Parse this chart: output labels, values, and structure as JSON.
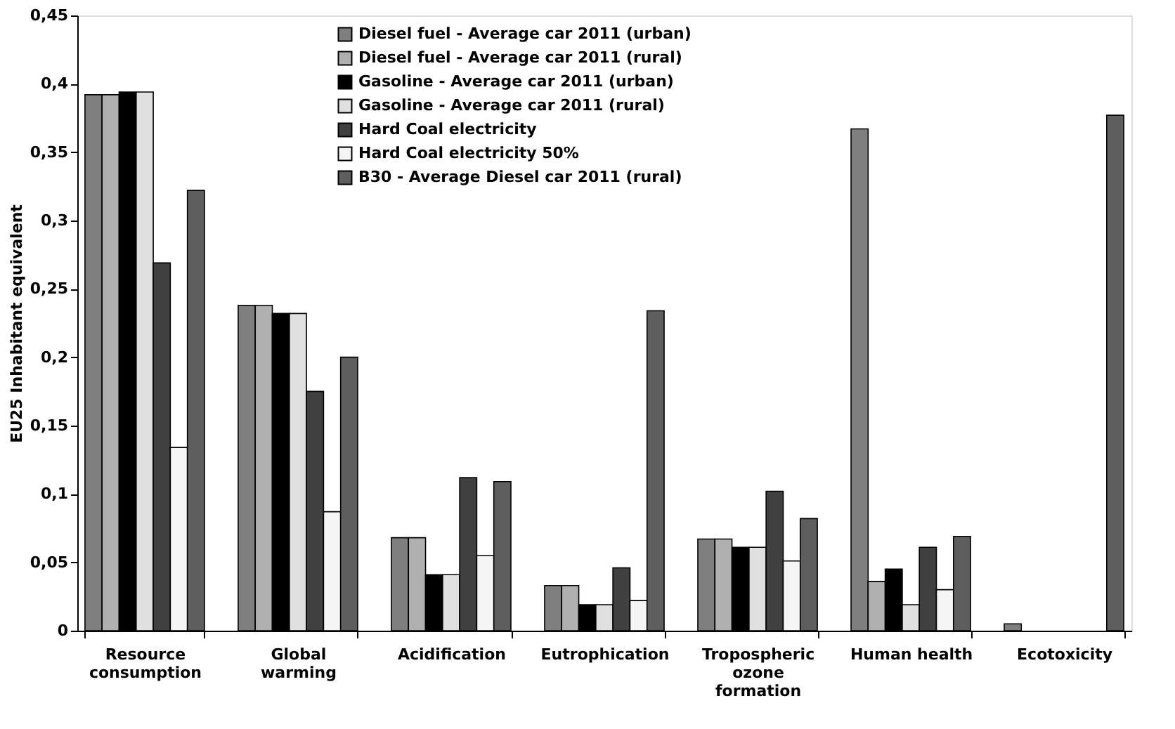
{
  "chart_data": {
    "type": "bar",
    "ylabel": "EU25 Inhabitant equivalent",
    "categories": [
      "Resource consumption",
      "Global warming",
      "Acidification",
      "Eutrophication",
      "Tropospheric ozone formation",
      "Human health",
      "Ecotoxicity"
    ],
    "series": [
      {
        "name": "Diesel fuel - Average car 2011 (urban)",
        "color": "#7f7f7f",
        "values": [
          0.392,
          0.238,
          0.068,
          0.033,
          0.067,
          0.367,
          0.005
        ]
      },
      {
        "name": "Diesel fuel - Average car 2011 (rural)",
        "color": "#b0b0b0",
        "values": [
          0.392,
          0.238,
          0.068,
          0.033,
          0.067,
          0.036,
          null
        ]
      },
      {
        "name": "Gasoline - Average car 2011 (urban)",
        "color": "#000000",
        "values": [
          0.394,
          0.232,
          0.041,
          0.019,
          0.061,
          0.045,
          null
        ]
      },
      {
        "name": "Gasoline - Average car 2011 (rural)",
        "color": "#e0e0e0",
        "values": [
          0.394,
          0.232,
          0.041,
          0.019,
          0.061,
          0.019,
          null
        ]
      },
      {
        "name": "Hard Coal electricity",
        "color": "#404040",
        "values": [
          0.269,
          0.175,
          0.112,
          0.046,
          0.102,
          0.061,
          null
        ]
      },
      {
        "name": "Hard Coal electricity 50%",
        "color": "#f5f5f5",
        "values": [
          0.134,
          0.087,
          0.055,
          0.022,
          0.051,
          0.03,
          null
        ]
      },
      {
        "name": "B30 - Average Diesel car 2011 (rural)",
        "color": "#5e5e5e",
        "values": [
          0.322,
          0.2,
          0.109,
          0.234,
          0.082,
          0.069,
          0.377
        ]
      }
    ],
    "ylim": [
      0,
      0.45
    ],
    "yticks": [
      0,
      {
        "value": 0.05,
        "label": "0,05"
      },
      {
        "value": 0.1,
        "label": "0,1"
      },
      {
        "value": 0.15,
        "label": "0,15"
      },
      {
        "value": 0.2,
        "label": "0,2"
      },
      {
        "value": 0.25,
        "label": "0,25"
      },
      {
        "value": 0.3,
        "label": "0,3"
      },
      {
        "value": 0.35,
        "label": "0,35"
      },
      {
        "value": 0.4,
        "label": "0,4"
      },
      {
        "value": 0.45,
        "label": "0,45"
      }
    ],
    "grid": false,
    "legend": "top"
  }
}
